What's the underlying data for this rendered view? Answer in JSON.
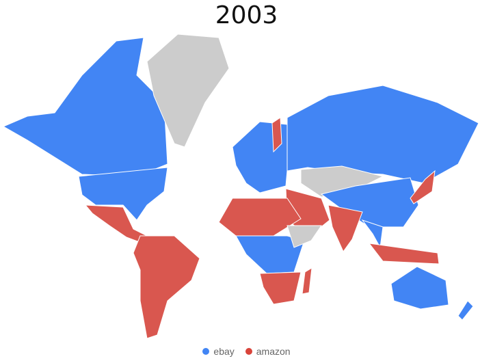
{
  "title": "2003",
  "colors": {
    "ebay": "#4285f4",
    "ebay_dark": "#1a66e0",
    "amazon": "#c0392b",
    "amazon_light": "#d9574f",
    "none": "#cccccc"
  },
  "legend": [
    {
      "label": "ebay",
      "key": "ebay"
    },
    {
      "label": "amazon",
      "key": "amazon"
    }
  ],
  "regions": {
    "canada": "ebay",
    "greenland": "none",
    "usa": "ebay",
    "mexico_central": "amazon",
    "south_america": "amazon",
    "europe": "ebay",
    "finland": "amazon",
    "russia": "ebay",
    "central_asia": "none",
    "china": "ebay",
    "middle_east": "amazon",
    "india": "amazon",
    "southeast_asia": "ebay",
    "indonesia": "amazon",
    "japan": "amazon",
    "north_africa": "amazon",
    "central_africa": "ebay",
    "horn_africa": "none",
    "southern_africa": "amazon",
    "madagascar": "amazon",
    "australia": "ebay",
    "new_zealand": "ebay"
  }
}
